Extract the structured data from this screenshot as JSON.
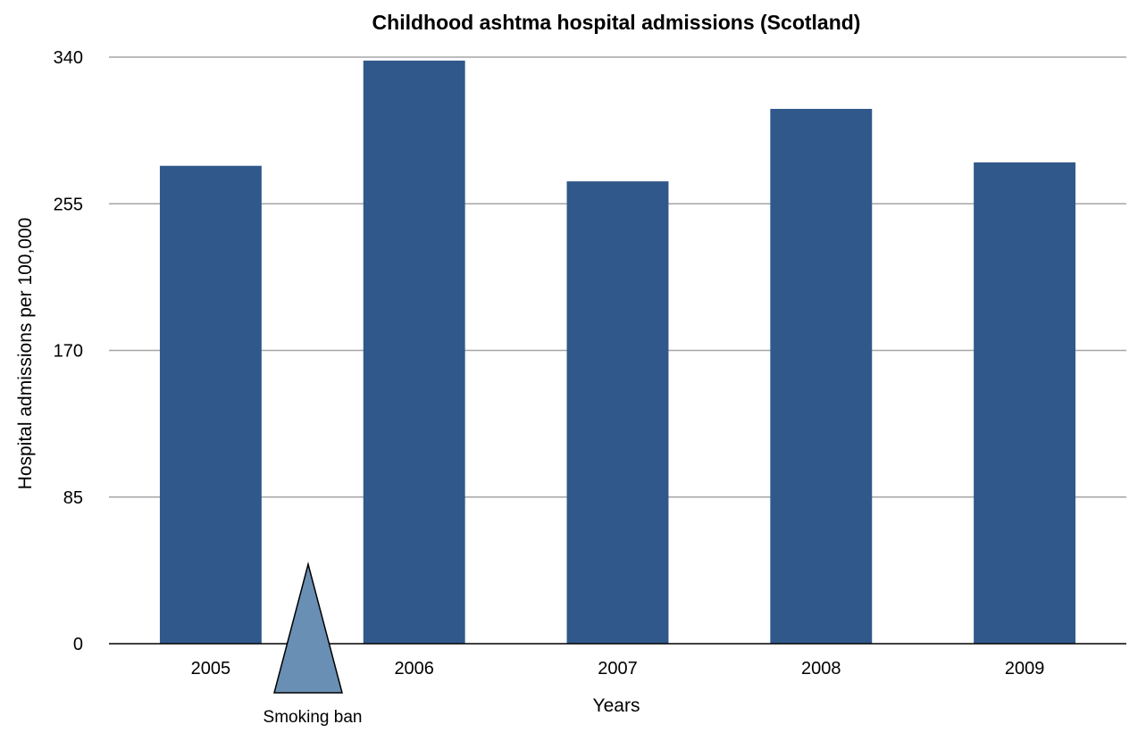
{
  "chart_data": {
    "type": "bar",
    "title": "Childhood ashtma hospital admissions (Scotland)",
    "xlabel": "Years",
    "ylabel": "Hospital admissions per 100,000",
    "categories": [
      "2005",
      "2006",
      "2007",
      "2008",
      "2009"
    ],
    "values": [
      277,
      338,
      268,
      310,
      279
    ],
    "ylim": [
      0,
      340
    ],
    "yticks": [
      "0",
      "85",
      "170",
      "255",
      "340"
    ],
    "grid": true,
    "legend": "none",
    "bar_color": "#30588a",
    "annotation": {
      "label": "Smoking ban",
      "marker": "triangle-icon",
      "color": "#6a8fb4"
    }
  }
}
